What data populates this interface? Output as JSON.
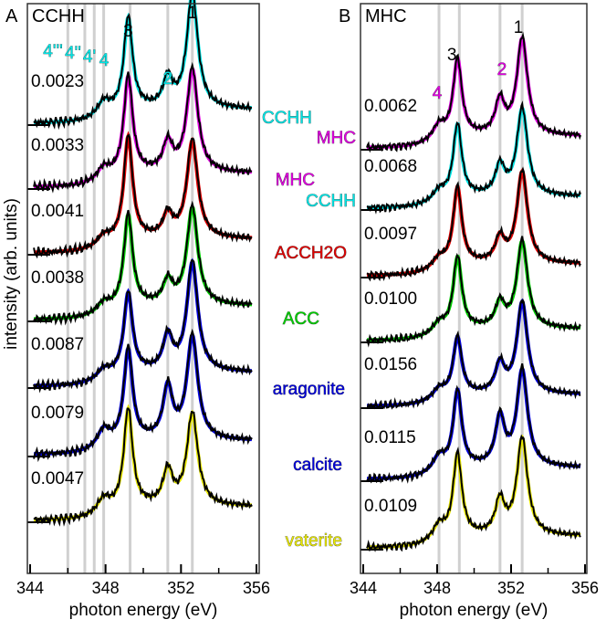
{
  "chart_data": {
    "type": "line",
    "xlabel": "photon energy (eV)",
    "ylabel": "intensity (arb. units)",
    "xlim": [
      344,
      356
    ],
    "xticks": [
      "344",
      "348",
      "352",
      "356"
    ],
    "colors": {
      "CCHH": "#00e5e5",
      "MHC": "#e000e0",
      "ACCH2O": "#e00000",
      "ACC": "#00d000",
      "aragonite": "#0000e0",
      "calcite": "#0000e0",
      "vaterite": "#e8e800"
    },
    "panels": [
      {
        "letter": "A",
        "title": "CCHH",
        "reference_lines": [
          346.0,
          346.9,
          347.4,
          347.9,
          349.3,
          351.3,
          352.6
        ],
        "peak_labels": [
          {
            "text": "3",
            "energy": 349.2,
            "color": "#000"
          },
          {
            "text": "1",
            "energy": 352.6,
            "color": "#000"
          },
          {
            "text": "2",
            "energy": 351.3,
            "color": "#00e5e5"
          },
          {
            "text": "4'''",
            "energy": 346.1,
            "color": "#00e5e5"
          },
          {
            "text": "4''",
            "energy": 346.9,
            "color": "#00e5e5"
          },
          {
            "text": "4'",
            "energy": 347.4,
            "color": "#00e5e5"
          },
          {
            "text": "4",
            "energy": 347.9,
            "color": "#00e5e5"
          }
        ],
        "traces": [
          {
            "name": "CCHH",
            "label": "CCHH",
            "scale": "0.0023",
            "p1": 1.0,
            "p2": 0.25,
            "p3": 0.8,
            "p4": 0.12
          },
          {
            "name": "MHC",
            "label": "MHC",
            "scale": "0.0033",
            "p1": 0.9,
            "p2": 0.25,
            "p3": 0.85,
            "p4": 0.1
          },
          {
            "name": "ACCH2O",
            "label": "ACCH2O",
            "scale": "0.0041",
            "p1": 0.85,
            "p2": 0.2,
            "p3": 0.9,
            "p4": 0.08
          },
          {
            "name": "ACC",
            "label": "ACC",
            "scale": "0.0038",
            "p1": 0.85,
            "p2": 0.2,
            "p3": 0.8,
            "p4": 0.08
          },
          {
            "name": "aragonite",
            "label": "aragonite",
            "scale": "0.0087",
            "p1": 0.95,
            "p2": 0.3,
            "p3": 0.7,
            "p4": 0.08
          },
          {
            "name": "calcite",
            "label": "calcite",
            "scale": "0.0079",
            "p1": 0.9,
            "p2": 0.45,
            "p3": 0.8,
            "p4": 0.15
          },
          {
            "name": "vaterite",
            "label": "vaterite",
            "scale": "0.0047",
            "p1": 0.8,
            "p2": 0.3,
            "p3": 0.85,
            "p4": 0.12
          }
        ]
      },
      {
        "letter": "B",
        "title": "MHC",
        "reference_lines": [
          348.1,
          349.2,
          351.4,
          352.6
        ],
        "peak_labels": [
          {
            "text": "3",
            "energy": 348.8,
            "color": "#000"
          },
          {
            "text": "1",
            "energy": 352.4,
            "color": "#000"
          },
          {
            "text": "2",
            "energy": 351.5,
            "color": "#e000e0"
          },
          {
            "text": "4",
            "energy": 348.0,
            "color": "#e000e0"
          }
        ],
        "traces": [
          {
            "name": "MHC",
            "label": "MHC",
            "scale": "0.0062",
            "p1": 1.0,
            "p2": 0.35,
            "p3": 0.8,
            "p4": 0.15
          },
          {
            "name": "CCHH",
            "label": "CCHH",
            "scale": "0.0068",
            "p1": 0.9,
            "p2": 0.3,
            "p3": 0.75,
            "p4": 0.1
          },
          {
            "name": "ACCH2O",
            "label": "ACCH2O",
            "scale": "0.0097",
            "p1": 0.95,
            "p2": 0.25,
            "p3": 0.8,
            "p4": 0.1
          },
          {
            "name": "ACC",
            "label": "ACC",
            "scale": "0.0100",
            "p1": 0.9,
            "p2": 0.25,
            "p3": 0.75,
            "p4": 0.1
          },
          {
            "name": "aragonite",
            "label": "aragonite",
            "scale": "0.0156",
            "p1": 0.95,
            "p2": 0.3,
            "p3": 0.6,
            "p4": 0.1
          },
          {
            "name": "calcite",
            "label": "calcite",
            "scale": "0.0115",
            "p1": 1.0,
            "p2": 0.5,
            "p3": 0.8,
            "p4": 0.15
          },
          {
            "name": "vaterite",
            "label": "vaterite",
            "scale": "0.0109",
            "p1": 1.0,
            "p2": 0.35,
            "p3": 0.85,
            "p4": 0.15
          }
        ]
      }
    ]
  }
}
